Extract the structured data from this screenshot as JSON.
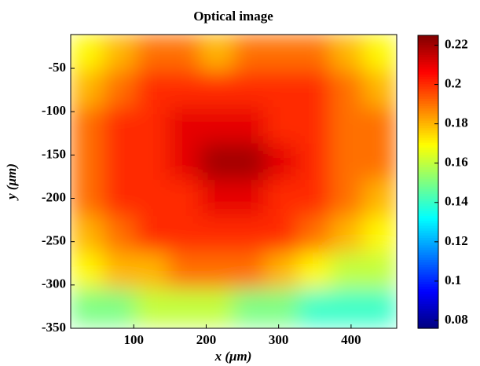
{
  "chart_data": {
    "type": "heatmap",
    "title": "Optical image",
    "x_label": "x (μm)",
    "y_label": "y (μm)",
    "xlim": [
      13,
      463
    ],
    "ylim": [
      -350,
      -11
    ],
    "xticks": [
      100,
      200,
      300,
      400
    ],
    "yticks": [
      -50,
      -100,
      -150,
      -200,
      -250,
      -300,
      -350
    ],
    "x": [
      35,
      80,
      125,
      170,
      215,
      260,
      305,
      350,
      395,
      440
    ],
    "y": [
      -32,
      -74,
      -116,
      -158,
      -200,
      -242,
      -284,
      -326
    ],
    "z": [
      [
        0.17,
        0.18,
        0.19,
        0.19,
        0.18,
        0.19,
        0.19,
        0.19,
        0.18,
        0.17
      ],
      [
        0.18,
        0.19,
        0.2,
        0.2,
        0.2,
        0.2,
        0.2,
        0.2,
        0.19,
        0.18
      ],
      [
        0.19,
        0.2,
        0.2,
        0.21,
        0.21,
        0.21,
        0.2,
        0.2,
        0.19,
        0.19
      ],
      [
        0.19,
        0.2,
        0.2,
        0.21,
        0.22,
        0.22,
        0.21,
        0.2,
        0.19,
        0.19
      ],
      [
        0.19,
        0.2,
        0.2,
        0.2,
        0.21,
        0.21,
        0.2,
        0.2,
        0.19,
        0.18
      ],
      [
        0.18,
        0.19,
        0.2,
        0.2,
        0.2,
        0.2,
        0.2,
        0.19,
        0.18,
        0.17
      ],
      [
        0.17,
        0.18,
        0.18,
        0.19,
        0.19,
        0.19,
        0.18,
        0.17,
        0.16,
        0.16
      ],
      [
        0.15,
        0.15,
        0.16,
        0.16,
        0.16,
        0.15,
        0.15,
        0.14,
        0.14,
        0.14
      ]
    ],
    "colormap": "jet",
    "clim": [
      0.076,
      0.225
    ],
    "cticks": [
      0.08,
      0.1,
      0.12,
      0.14,
      0.16,
      0.18,
      0.2,
      0.22
    ]
  }
}
